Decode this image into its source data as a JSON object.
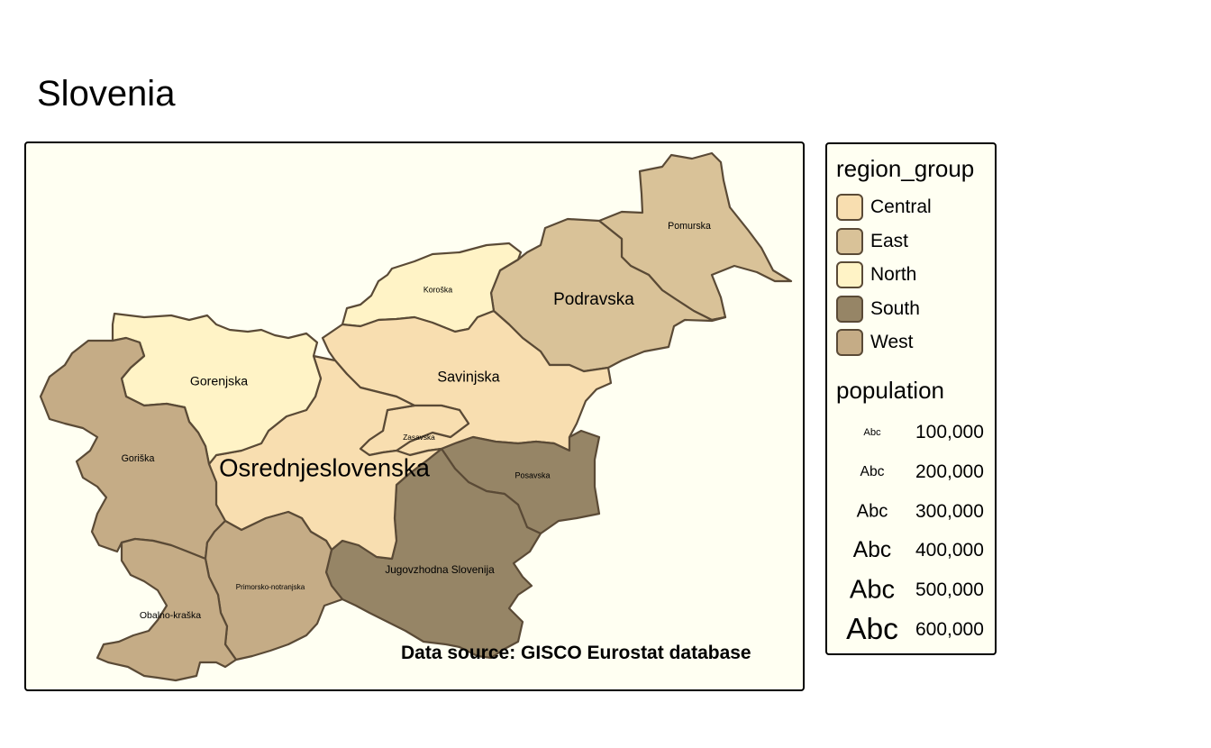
{
  "title": "Slovenia",
  "source_note": "Data source: GISCO Eurostat database",
  "colors": {
    "Central": "#f8deb0",
    "East": "#d9c298",
    "North": "#fff3c6",
    "South": "#968566",
    "West": "#c5ac86",
    "background": "#fffff2",
    "border": "#5a4a36"
  },
  "regions": [
    {
      "name": "Pomurska",
      "group": "East",
      "population": 114000
    },
    {
      "name": "Podravska",
      "group": "East",
      "population": 325000
    },
    {
      "name": "Koroška",
      "group": "North",
      "population": 71000
    },
    {
      "name": "Savinjska",
      "group": "Central",
      "population": 255000
    },
    {
      "name": "Zasavska",
      "group": "Central",
      "population": 57000
    },
    {
      "name": "Posavska",
      "group": "South",
      "population": 75000
    },
    {
      "name": "Jugovzhodna Slovenija",
      "group": "South",
      "population": 144000
    },
    {
      "name": "Osrednjeslovenska",
      "group": "Central",
      "population": 537000
    },
    {
      "name": "Gorenjska",
      "group": "North",
      "population": 203000
    },
    {
      "name": "Primorsko-notranjska",
      "group": "West",
      "population": 52000
    },
    {
      "name": "Goriška",
      "group": "West",
      "population": 118000
    },
    {
      "name": "Obalno-kraška",
      "group": "West",
      "population": 113000
    }
  ],
  "legend": {
    "color_title": "region_group",
    "color_items": [
      {
        "label": "Central",
        "color": "#f8deb0"
      },
      {
        "label": "East",
        "color": "#d9c298"
      },
      {
        "label": "North",
        "color": "#fff3c6"
      },
      {
        "label": "South",
        "color": "#968566"
      },
      {
        "label": "West",
        "color": "#c5ac86"
      }
    ],
    "size_title": "population",
    "size_sample_text": "Abc",
    "size_items": [
      {
        "label": "100,000",
        "population": 100000
      },
      {
        "label": "200,000",
        "population": 200000
      },
      {
        "label": "300,000",
        "population": 300000
      },
      {
        "label": "400,000",
        "population": 400000
      },
      {
        "label": "500,000",
        "population": 500000
      },
      {
        "label": "600,000",
        "population": 600000
      }
    ]
  }
}
